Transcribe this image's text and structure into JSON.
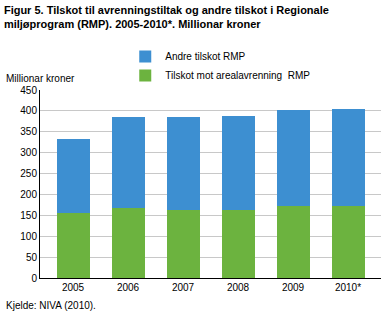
{
  "chart_data": {
    "type": "bar",
    "title": [
      "Figur 5. Tilskot til avrenningstiltak og andre tilskot i Regionale",
      "miljøprogram (RMP). 2005-2010*. Millionar kroner"
    ],
    "ylabel": "Millionar kroner",
    "source": "Kjelde: NIVA (2010).",
    "categories": [
      "2005",
      "2006",
      "2007",
      "2008",
      "2009",
      "2010*"
    ],
    "series": [
      {
        "name": "Tilskot mot arealavrenning  RMP",
        "color": "#6cb33f",
        "values": [
          155,
          168,
          163,
          162,
          172,
          173
        ]
      },
      {
        "name": "Andre tilskot RMP",
        "color": "#3d8fd1",
        "values": [
          178,
          217,
          222,
          225,
          231,
          232
        ]
      }
    ],
    "stacked": true,
    "ylim": [
      0,
      450
    ],
    "yticks": [
      0,
      50,
      100,
      150,
      200,
      250,
      300,
      350,
      400,
      450
    ],
    "grid": true,
    "legend": "top-left"
  }
}
